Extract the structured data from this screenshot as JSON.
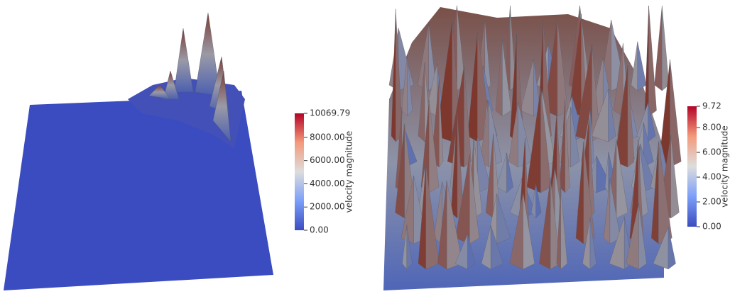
{
  "panels": [
    {
      "colorbar": {
        "title": "velocity magnitude",
        "range": [
          0,
          10069.79
        ],
        "ticks": [
          {
            "value": 0,
            "label": "0.00"
          },
          {
            "value": 2000,
            "label": "2000.00"
          },
          {
            "value": 4000,
            "label": "4000.00"
          },
          {
            "value": 6000,
            "label": "6000.00"
          },
          {
            "value": 8000,
            "label": "8000.00"
          },
          {
            "value": 10069.79,
            "label": "10069.79"
          }
        ]
      }
    },
    {
      "colorbar": {
        "title": "velocity magnitude",
        "range": [
          0,
          9.72
        ],
        "ticks": [
          {
            "value": 0,
            "label": "0.00"
          },
          {
            "value": 2,
            "label": "2.00"
          },
          {
            "value": 4,
            "label": "4.00"
          },
          {
            "value": 6,
            "label": "6.00"
          },
          {
            "value": 8,
            "label": "8.00"
          },
          {
            "value": 9.72,
            "label": "9.72"
          }
        ]
      }
    }
  ]
}
